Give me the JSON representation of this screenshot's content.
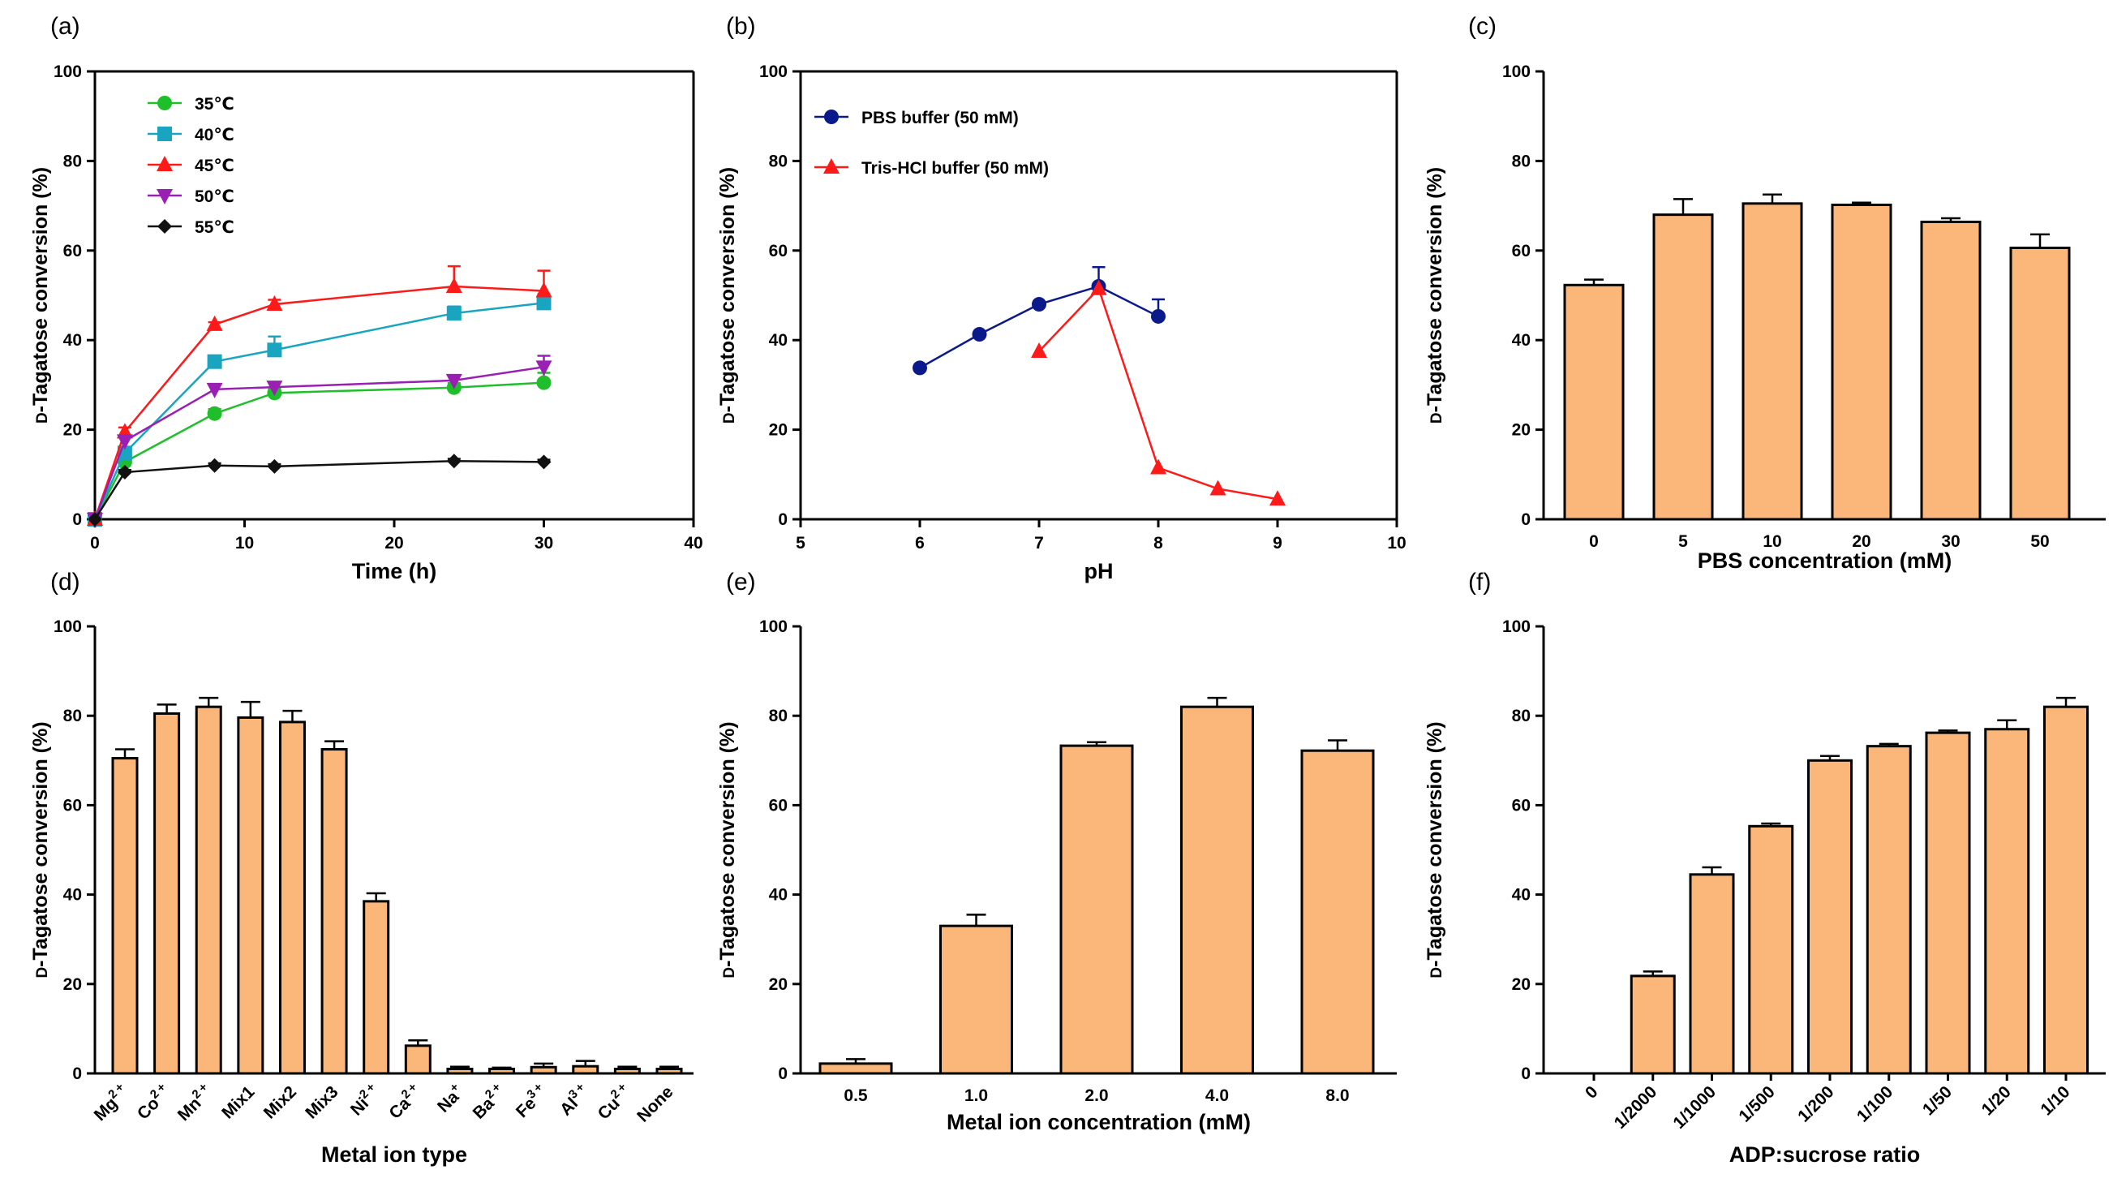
{
  "chart_data": [
    {
      "panel": "(a)",
      "type": "line",
      "xlabel": "Time (h)",
      "ylabel": "D-Tagatose conversion (%)",
      "xlim": [
        0,
        40
      ],
      "ylim": [
        0,
        100
      ],
      "xticks": [
        0,
        10,
        20,
        30,
        40
      ],
      "yticks": [
        0,
        20,
        40,
        60,
        80,
        100
      ],
      "legend": "top-left",
      "x": [
        0,
        2,
        8,
        12,
        24,
        30
      ],
      "series": [
        {
          "name": "35℃",
          "color": "#1fbf2b",
          "marker": "circle",
          "values": [
            0,
            12.8,
            23.6,
            28.2,
            29.4,
            30.5
          ],
          "errors": [
            0,
            1.5,
            1,
            1,
            1,
            2.2
          ]
        },
        {
          "name": "40℃",
          "color": "#19a5bf",
          "marker": "square",
          "values": [
            0,
            14.8,
            35.2,
            37.8,
            46,
            48.3
          ],
          "errors": [
            0,
            1,
            1,
            3,
            1.5,
            2
          ]
        },
        {
          "name": "45℃",
          "color": "#ff1a1a",
          "marker": "triangle-up",
          "values": [
            0,
            19.5,
            43.5,
            48,
            52,
            51
          ],
          "errors": [
            0,
            1,
            0.5,
            1,
            4.5,
            4.5
          ]
        },
        {
          "name": "50℃",
          "color": "#9a1fb3",
          "marker": "triangle-down",
          "values": [
            0,
            17.5,
            29,
            29.5,
            31,
            34
          ],
          "errors": [
            0,
            1,
            1,
            1,
            1,
            2.5
          ]
        },
        {
          "name": "55℃",
          "color": "#111111",
          "marker": "diamond",
          "values": [
            0,
            10.5,
            12,
            11.8,
            13,
            12.8
          ],
          "errors": [
            0,
            0.5,
            0.5,
            0.5,
            0.5,
            0.5
          ]
        }
      ]
    },
    {
      "panel": "(b)",
      "type": "line",
      "xlabel": "pH",
      "ylabel": "D-Tagatose conversion (%)",
      "xlim": [
        5,
        10
      ],
      "ylim": [
        0,
        100
      ],
      "xticks": [
        5,
        6,
        7,
        8,
        9,
        10
      ],
      "yticks": [
        0,
        20,
        40,
        60,
        80,
        100
      ],
      "legend": "top-left",
      "series": [
        {
          "name": "PBS buffer (50 mM)",
          "color": "#0a1a8a",
          "marker": "circle",
          "x": [
            6,
            6.5,
            7,
            7.5,
            8
          ],
          "values": [
            33.8,
            41.3,
            48,
            52,
            45.3
          ],
          "errors": [
            0.5,
            0.5,
            0.5,
            4.3,
            3.8
          ]
        },
        {
          "name": "Tris-HCl buffer (50 mM)",
          "color": "#ff1a1a",
          "marker": "triangle-up",
          "x": [
            7,
            7.5,
            8,
            8.5,
            9
          ],
          "values": [
            37.5,
            51.5,
            11.5,
            6.8,
            4.5
          ],
          "errors": [
            0,
            0,
            0,
            0,
            0
          ]
        }
      ]
    },
    {
      "panel": "(c)",
      "type": "bar",
      "xlabel": "PBS concentration (mM)",
      "ylabel": "D-Tagatose conversion (%)",
      "ylim": [
        0,
        100
      ],
      "yticks": [
        0,
        20,
        40,
        60,
        80,
        100
      ],
      "categories": [
        "0",
        "5",
        "10",
        "20",
        "30",
        "50"
      ],
      "values": [
        52.3,
        68,
        70.5,
        70.2,
        66.4,
        60.6
      ],
      "errors": [
        1.2,
        3.5,
        2,
        0.5,
        0.8,
        3
      ]
    },
    {
      "panel": "(d)",
      "type": "bar",
      "xlabel": "Metal ion type",
      "ylabel": "D-Tagatose conversion (%)",
      "ylim": [
        0,
        100
      ],
      "yticks": [
        0,
        20,
        40,
        60,
        80,
        100
      ],
      "categories": [
        {
          "base": "Mg",
          "sup": "2 +"
        },
        {
          "base": "Co",
          "sup": "2 +"
        },
        {
          "base": "Mn",
          "sup": "2 +"
        },
        {
          "base": "Mix1",
          "sup": ""
        },
        {
          "base": "Mix2",
          "sup": ""
        },
        {
          "base": "Mix3",
          "sup": ""
        },
        {
          "base": "Ni",
          "sup": "2 +"
        },
        {
          "base": "Ca",
          "sup": "2 +"
        },
        {
          "base": "Na",
          "sup": "+"
        },
        {
          "base": "Ba",
          "sup": "2 +"
        },
        {
          "base": "Fe",
          "sup": "3 +"
        },
        {
          "base": "Al",
          "sup": "3 +"
        },
        {
          "base": "Cu",
          "sup": "2 +"
        },
        {
          "base": "None",
          "sup": ""
        }
      ],
      "values": [
        70.5,
        80.5,
        82,
        79.6,
        78.6,
        72.5,
        38.5,
        6.2,
        1,
        1,
        1.4,
        1.6,
        1,
        1
      ],
      "errors": [
        2,
        2,
        2,
        3.5,
        2.5,
        1.8,
        1.8,
        1.2,
        0.5,
        0.3,
        0.8,
        1.2,
        0.5,
        0.5
      ]
    },
    {
      "panel": "(e)",
      "type": "bar",
      "xlabel": "Metal ion concentration (mM)",
      "ylabel": "D-Tagatose conversion (%)",
      "ylim": [
        0,
        100
      ],
      "yticks": [
        0,
        20,
        40,
        60,
        80,
        100
      ],
      "categories": [
        "0.5",
        "1.0",
        "2.0",
        "4.0",
        "8.0"
      ],
      "values": [
        2.2,
        33,
        73.3,
        82,
        72.2
      ],
      "errors": [
        1,
        2.5,
        0.8,
        2,
        2.3
      ]
    },
    {
      "panel": "(f)",
      "type": "bar",
      "xlabel": "ADP:sucrose ratio",
      "ylabel": "D-Tagatose conversion (%)",
      "ylim": [
        0,
        100
      ],
      "yticks": [
        0,
        20,
        40,
        60,
        80,
        100
      ],
      "categories": [
        "0",
        "1/2000",
        "1/1000",
        "1/500",
        "1/200",
        "1/100",
        "1/50",
        "1/20",
        "1/10"
      ],
      "values": [
        0,
        21.8,
        44.5,
        55.3,
        70,
        73.2,
        76.2,
        77,
        82
      ],
      "errors": [
        0,
        1,
        1.6,
        0.6,
        1,
        0.5,
        0.5,
        2,
        2
      ]
    }
  ],
  "style": {
    "bar_fill": "#fbb77a",
    "axis_color": "#000000"
  }
}
